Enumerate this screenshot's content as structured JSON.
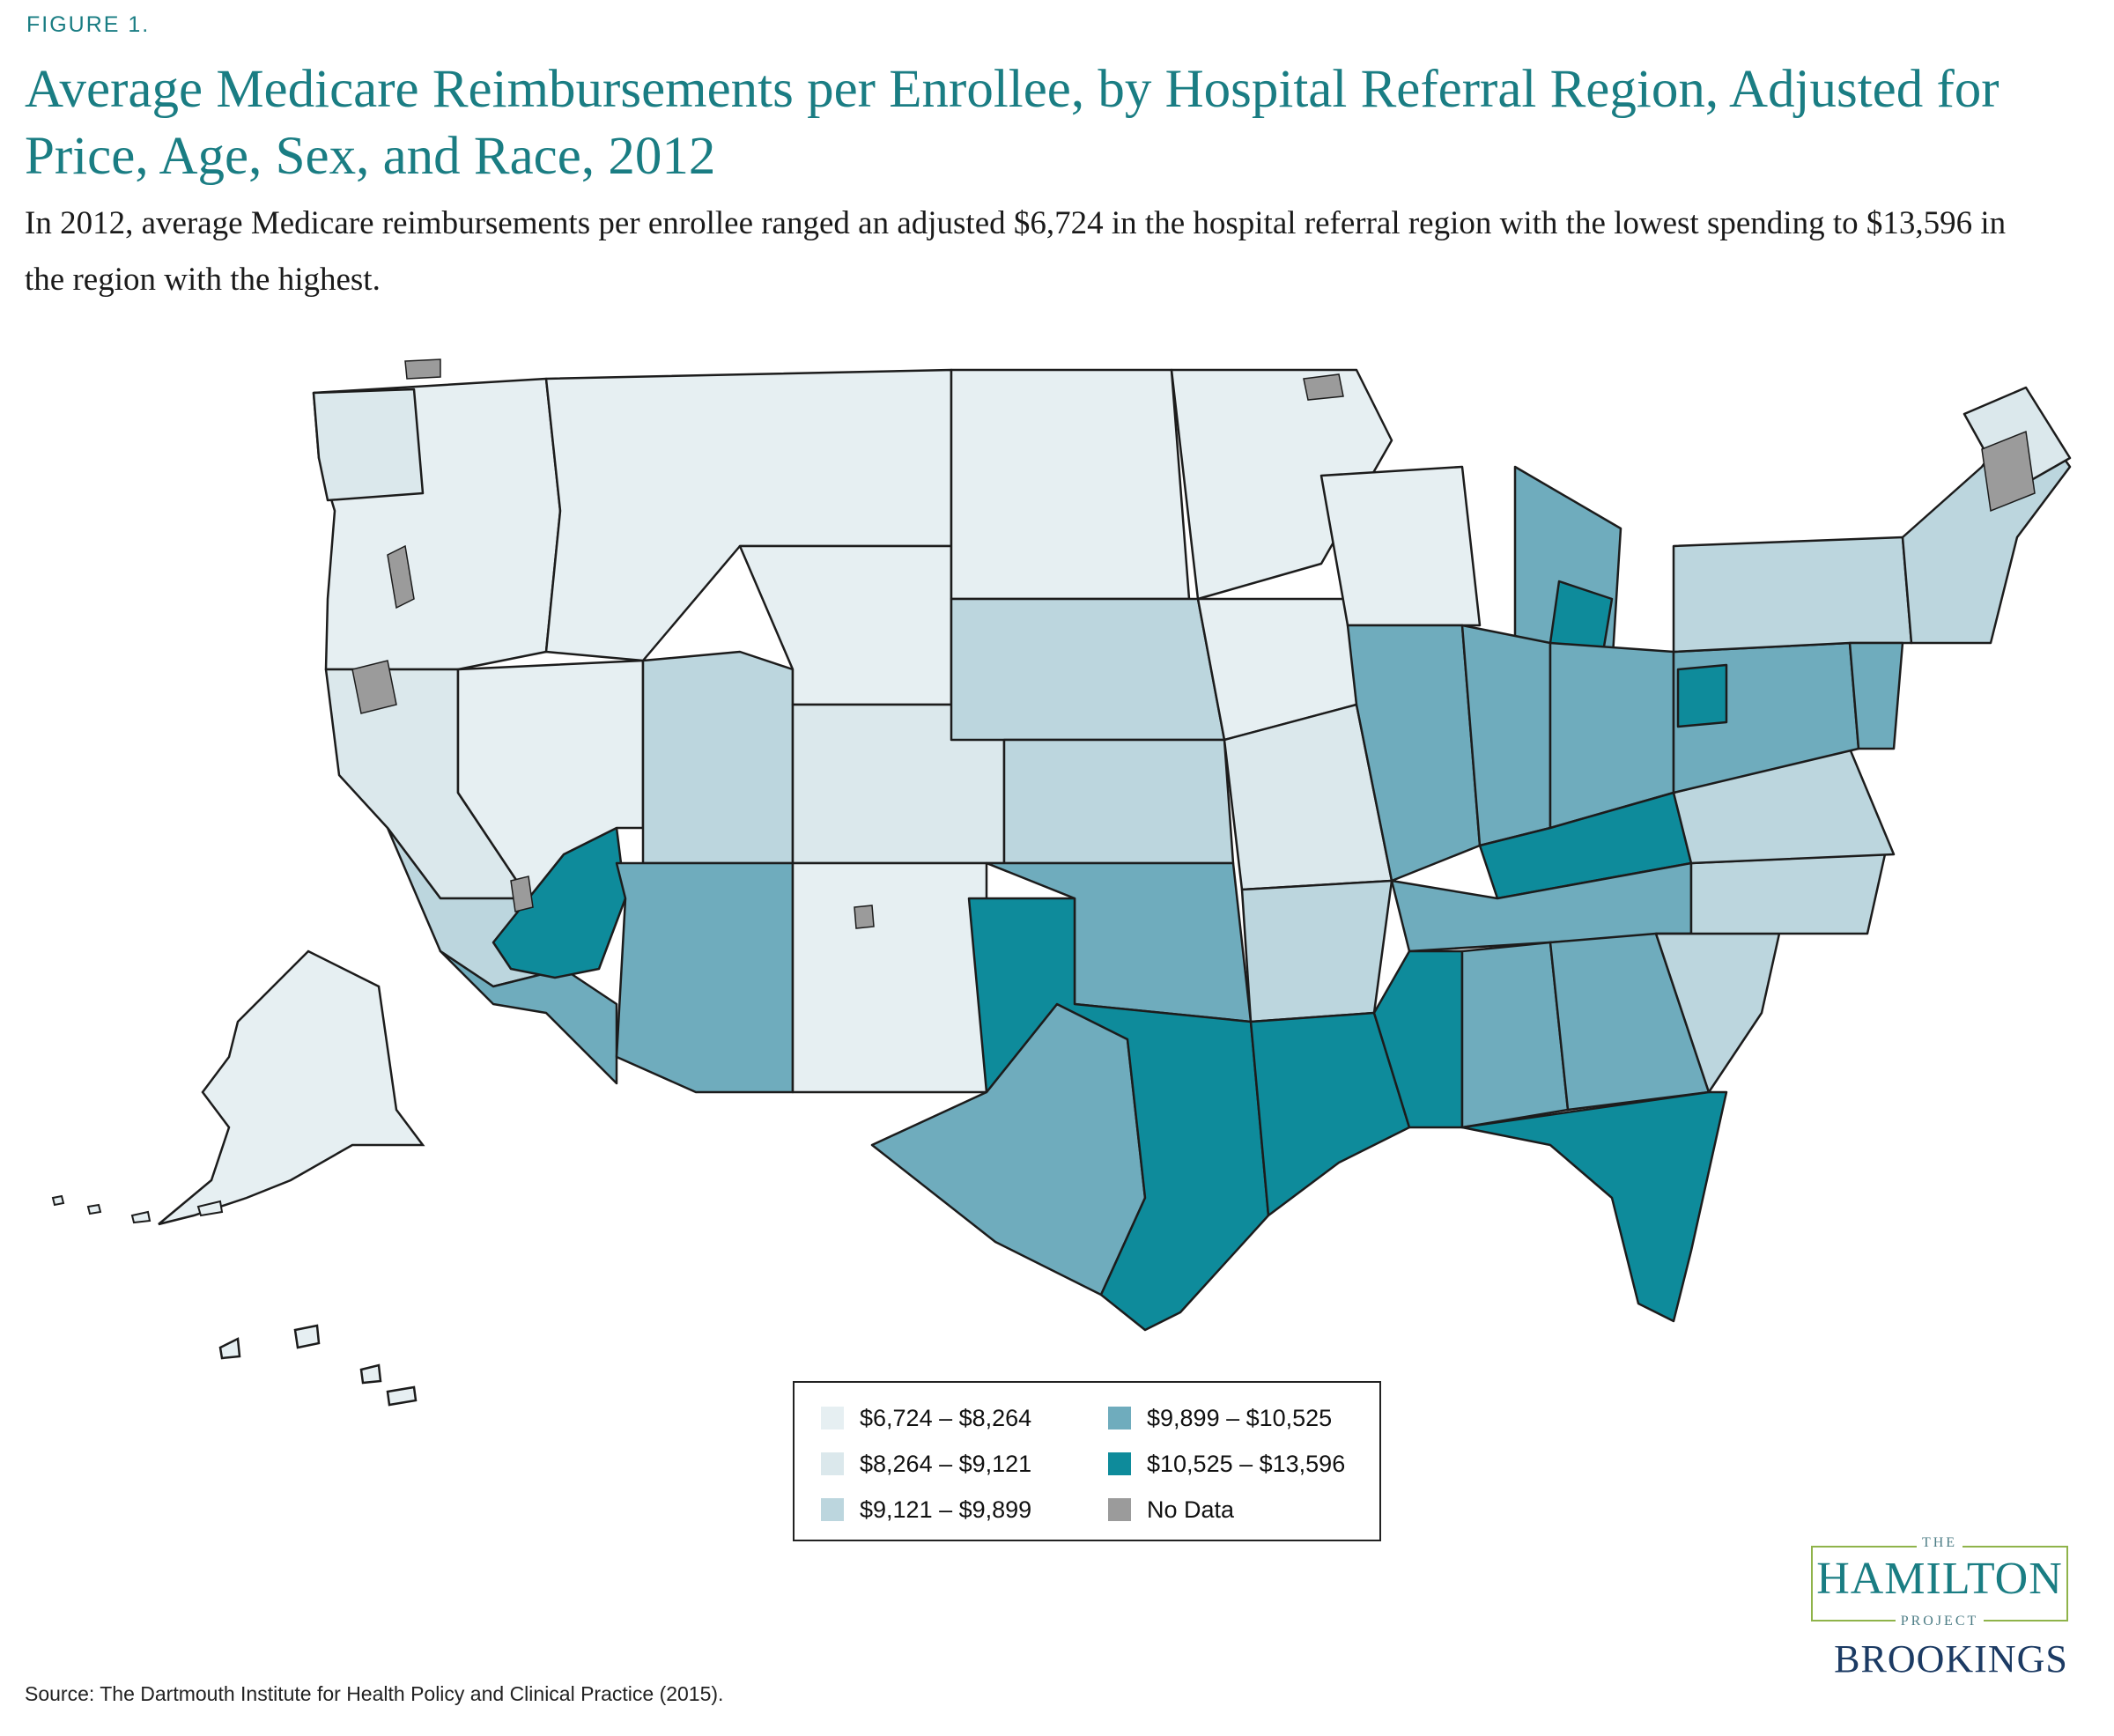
{
  "figure_label": "FIGURE 1.",
  "title": "Average Medicare Reimbursements per Enrollee, by Hospital Referral Region, Adjusted for Price, Age, Sex, and Race, 2012",
  "subtitle": "In 2012, average Medicare reimbursements per enrollee ranged an adjusted $6,724 in the hospital referral region with the lowest spending to $13,596 in the region with the highest.",
  "legend": [
    {
      "label": "$6,724 – $8,264",
      "color": "#e6eff2"
    },
    {
      "label": "$8,264 – $9,121",
      "color": "#dbe8ec"
    },
    {
      "label": "$9,121 – $9,899",
      "color": "#bcd6de"
    },
    {
      "label": "$9,899 – $10,525",
      "color": "#6facbd"
    },
    {
      "label": "$10,525 – $13,596",
      "color": "#0e8b9b"
    },
    {
      "label": "No Data",
      "color": "#9b9b9b"
    }
  ],
  "source": "Source: The Dartmouth Institute for Health Policy and Clinical Practice (2015).",
  "branding": {
    "hamilton_the": "THE",
    "hamilton_name": "HAMILTON",
    "hamilton_project": "PROJECT",
    "brookings": "BROOKINGS"
  }
}
